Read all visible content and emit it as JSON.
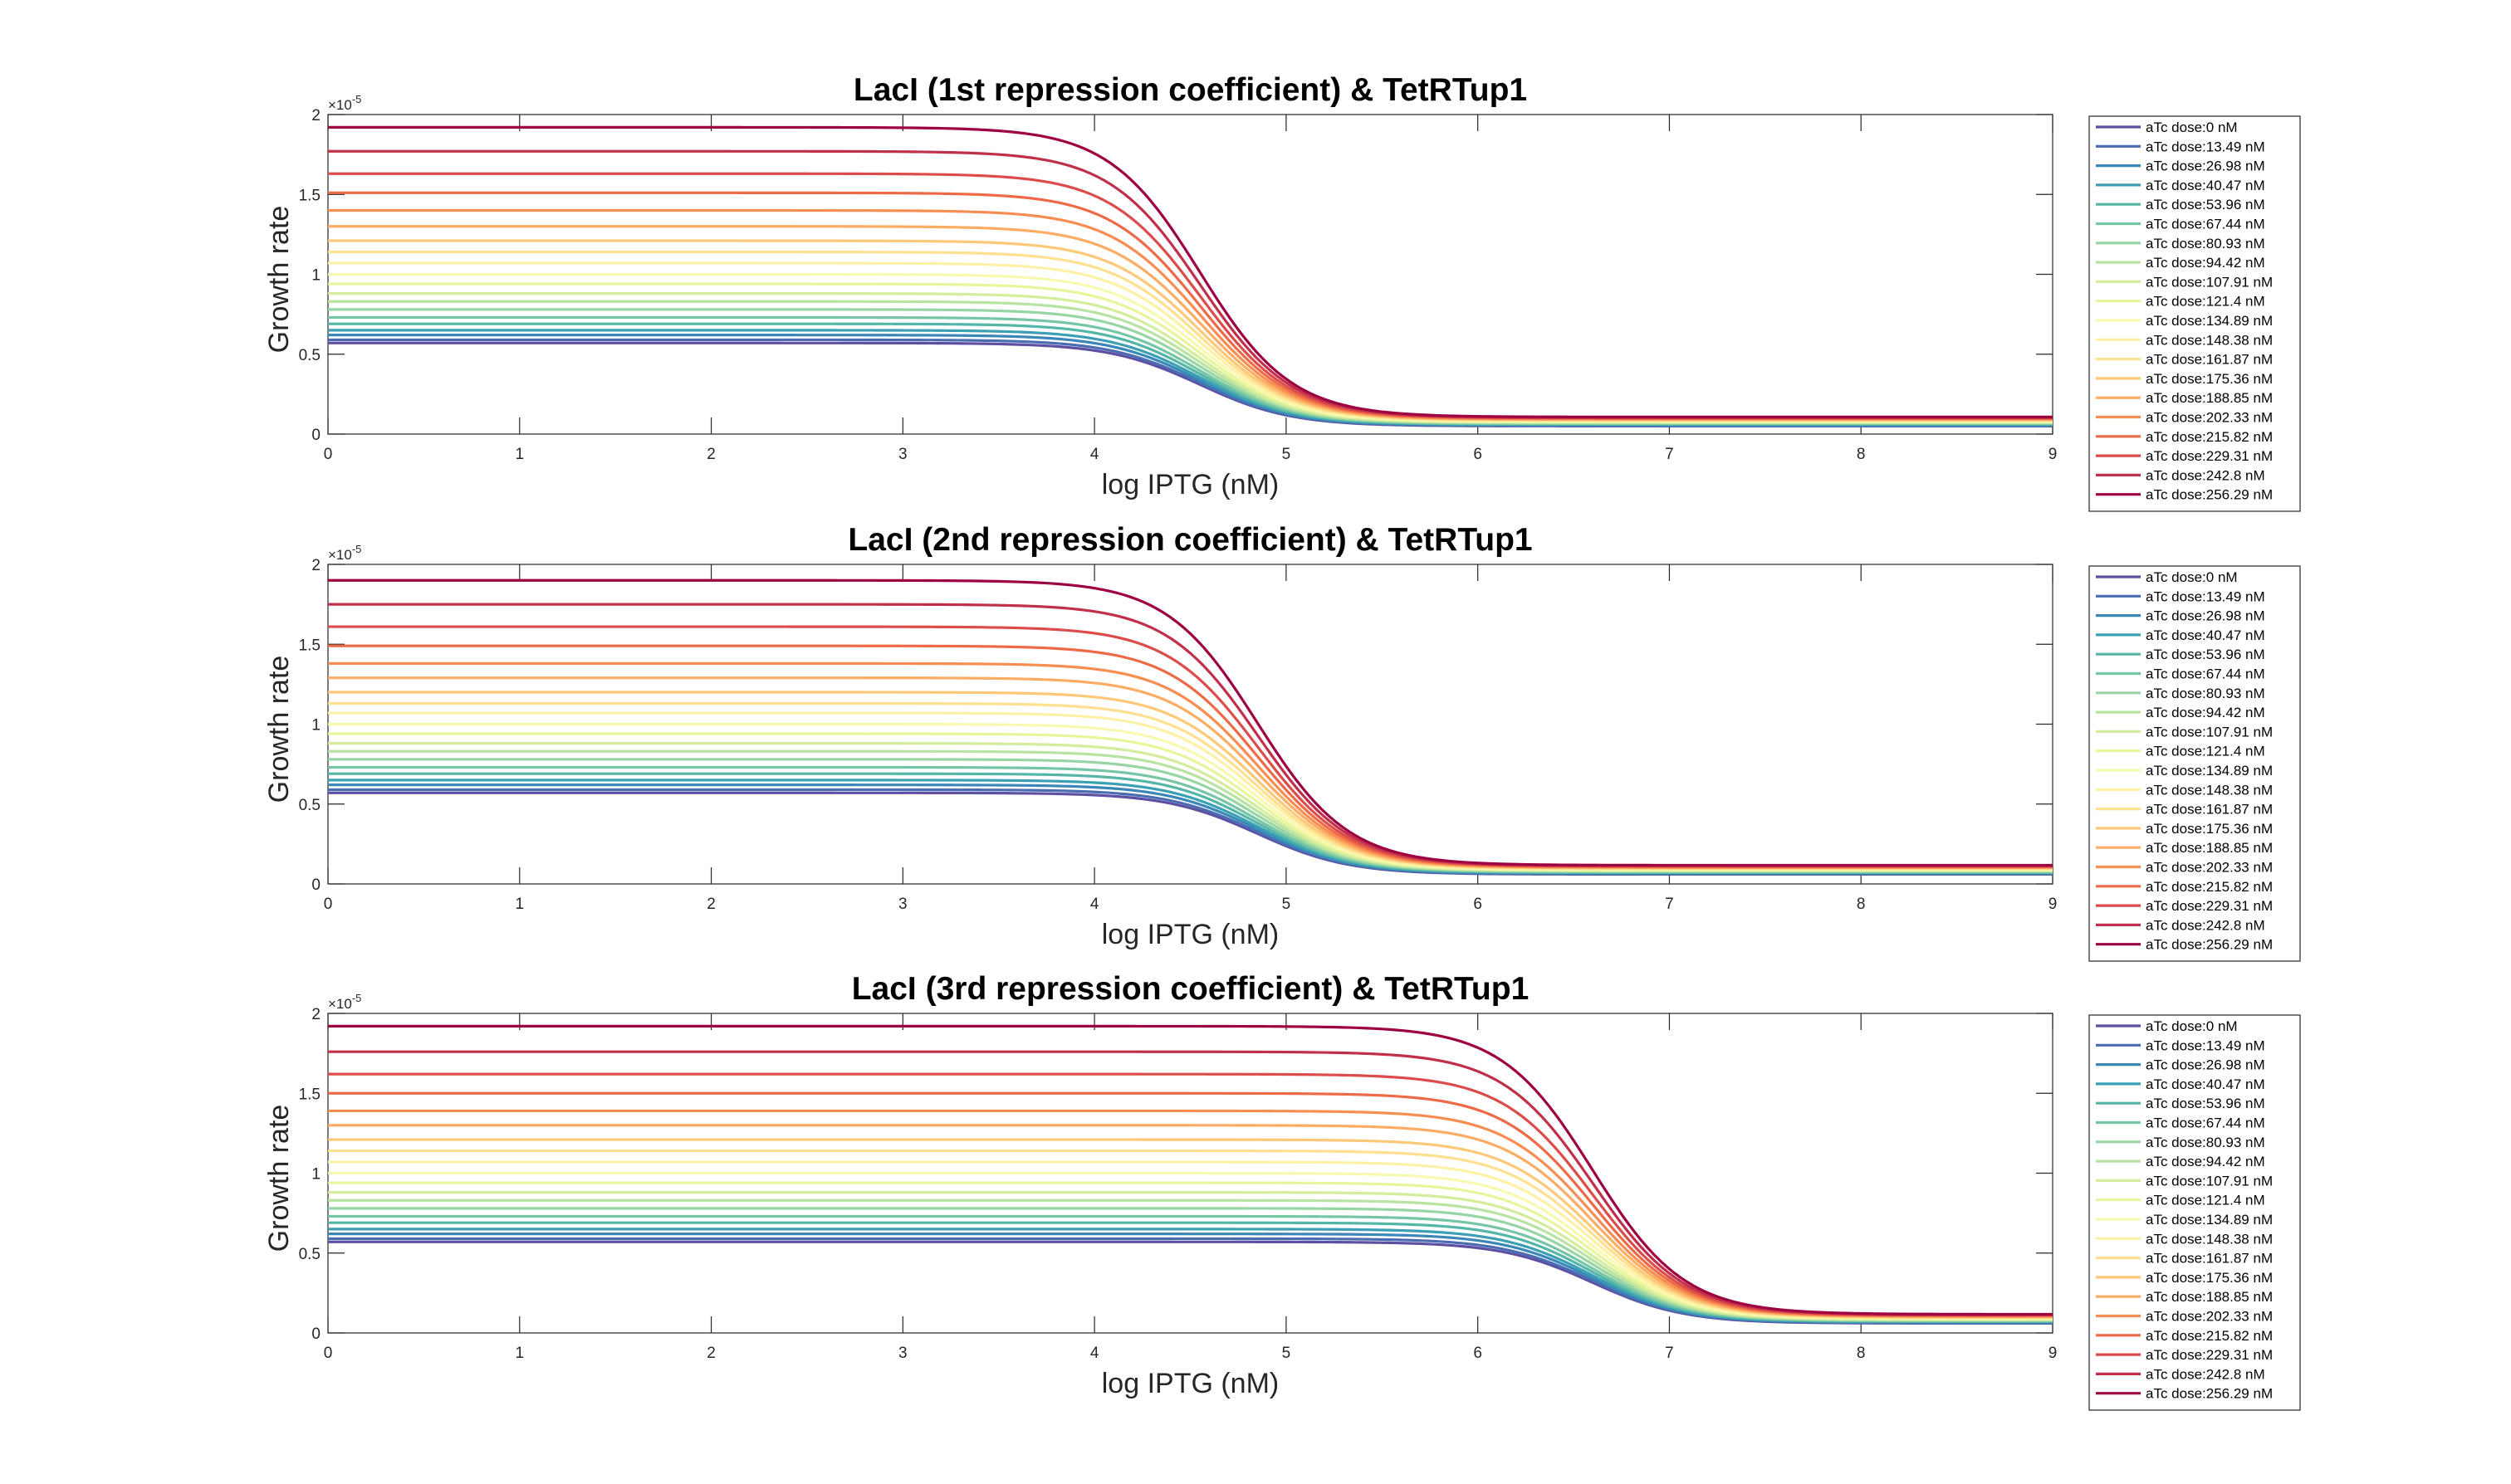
{
  "chart_data": [
    {
      "type": "line",
      "title": "LacI (1st repression coefficient) & TetRTup1",
      "xlabel": "log IPTG (nM)",
      "ylabel": "Growth rate",
      "xlim": [
        0,
        9
      ],
      "ylim": [
        0,
        2e-05
      ],
      "xticks": [
        "0",
        "1",
        "2",
        "3",
        "4",
        "5",
        "6",
        "7",
        "8",
        "9"
      ],
      "yticks": [
        "0",
        "0.5",
        "1",
        "1.5",
        "2"
      ],
      "y_exponent": "×10",
      "y_exponent_power": "-5",
      "grid": false,
      "legend_position": "outside-right",
      "midpoint_x": 4.55,
      "steepness": 4.2,
      "series": [
        {
          "name": "aTc dose:0 nM",
          "color": "#5e4fa2",
          "high": 5.7e-06,
          "low": 5e-07
        },
        {
          "name": "aTc dose:13.49 nM",
          "color": "#4a6db1",
          "high": 5.9e-06,
          "low": 5.3e-07
        },
        {
          "name": "aTc dose:26.98 nM",
          "color": "#3a87b8",
          "high": 6.2e-06,
          "low": 5.6e-07
        },
        {
          "name": "aTc dose:40.47 nM",
          "color": "#3ba0b4",
          "high": 6.5e-06,
          "low": 5.9e-07
        },
        {
          "name": "aTc dose:53.96 nM",
          "color": "#55b6a8",
          "high": 6.9e-06,
          "low": 6.2e-07
        },
        {
          "name": "aTc dose:67.44 nM",
          "color": "#76c6a5",
          "high": 7.3e-06,
          "low": 6.5e-07
        },
        {
          "name": "aTc dose:80.93 nM",
          "color": "#98d5a4",
          "high": 7.8e-06,
          "low": 6.8e-07
        },
        {
          "name": "aTc dose:94.42 nM",
          "color": "#b8e3a2",
          "high": 8.3e-06,
          "low": 7.1e-07
        },
        {
          "name": "aTc dose:107.91 nM",
          "color": "#d3ed9c",
          "high": 8.8e-06,
          "low": 7.4e-07
        },
        {
          "name": "aTc dose:121.4 nM",
          "color": "#e8f59b",
          "high": 9.4e-06,
          "low": 7.7e-07
        },
        {
          "name": "aTc dose:134.89 nM",
          "color": "#f8f9b0",
          "high": 1e-05,
          "low": 8e-07
        },
        {
          "name": "aTc dose:148.38 nM",
          "color": "#fdf1a6",
          "high": 1.07e-05,
          "low": 8.3e-07
        },
        {
          "name": "aTc dose:161.87 nM",
          "color": "#fee090",
          "high": 1.14e-05,
          "low": 8.6e-07
        },
        {
          "name": "aTc dose:175.36 nM",
          "color": "#fdc878",
          "high": 1.21e-05,
          "low": 8.9e-07
        },
        {
          "name": "aTc dose:188.85 nM",
          "color": "#fcac63",
          "high": 1.3e-05,
          "low": 9.2e-07
        },
        {
          "name": "aTc dose:202.33 nM",
          "color": "#f88d52",
          "high": 1.4e-05,
          "low": 9.5e-07
        },
        {
          "name": "aTc dose:215.82 nM",
          "color": "#ee6a46",
          "high": 1.51e-05,
          "low": 9.8e-07
        },
        {
          "name": "aTc dose:229.31 nM",
          "color": "#dc4c4b",
          "high": 1.63e-05,
          "low": 1.01e-06
        },
        {
          "name": "aTc dose:242.8 nM",
          "color": "#c1304a",
          "high": 1.77e-05,
          "low": 1.04e-06
        },
        {
          "name": "aTc dose:256.29 nM",
          "color": "#9e0142",
          "high": 1.92e-05,
          "low": 1.07e-06
        }
      ]
    },
    {
      "type": "line",
      "title": "LacI (2nd repression coefficient) & TetRTup1",
      "xlabel": "log IPTG (nM)",
      "ylabel": "Growth rate",
      "xlim": [
        0,
        9
      ],
      "ylim": [
        0,
        2e-05
      ],
      "xticks": [
        "0",
        "1",
        "2",
        "3",
        "4",
        "5",
        "6",
        "7",
        "8",
        "9"
      ],
      "yticks": [
        "0",
        "0.5",
        "1",
        "1.5",
        "2"
      ],
      "y_exponent": "×10",
      "y_exponent_power": "-5",
      "grid": false,
      "legend_position": "outside-right",
      "midpoint_x": 4.85,
      "steepness": 4.2,
      "series": [
        {
          "name": "aTc dose:0 nM",
          "color": "#5e4fa2",
          "high": 5.7e-06,
          "low": 6e-07
        },
        {
          "name": "aTc dose:13.49 nM",
          "color": "#4a6db1",
          "high": 5.9e-06,
          "low": 6.3e-07
        },
        {
          "name": "aTc dose:26.98 nM",
          "color": "#3a87b8",
          "high": 6.2e-06,
          "low": 6.6e-07
        },
        {
          "name": "aTc dose:40.47 nM",
          "color": "#3ba0b4",
          "high": 6.5e-06,
          "low": 6.9e-07
        },
        {
          "name": "aTc dose:53.96 nM",
          "color": "#55b6a8",
          "high": 6.9e-06,
          "low": 7.2e-07
        },
        {
          "name": "aTc dose:67.44 nM",
          "color": "#76c6a5",
          "high": 7.3e-06,
          "low": 7.5e-07
        },
        {
          "name": "aTc dose:80.93 nM",
          "color": "#98d5a4",
          "high": 7.8e-06,
          "low": 7.8e-07
        },
        {
          "name": "aTc dose:94.42 nM",
          "color": "#b8e3a2",
          "high": 8.3e-06,
          "low": 8.1e-07
        },
        {
          "name": "aTc dose:107.91 nM",
          "color": "#d3ed9c",
          "high": 8.8e-06,
          "low": 8.4e-07
        },
        {
          "name": "aTc dose:121.4 nM",
          "color": "#e8f59b",
          "high": 9.4e-06,
          "low": 8.7e-07
        },
        {
          "name": "aTc dose:134.89 nM",
          "color": "#f8f9b0",
          "high": 1e-05,
          "low": 9e-07
        },
        {
          "name": "aTc dose:148.38 nM",
          "color": "#fdf1a6",
          "high": 1.07e-05,
          "low": 9.3e-07
        },
        {
          "name": "aTc dose:161.87 nM",
          "color": "#fee090",
          "high": 1.13e-05,
          "low": 9.6e-07
        },
        {
          "name": "aTc dose:175.36 nM",
          "color": "#fdc878",
          "high": 1.2e-05,
          "low": 9.9e-07
        },
        {
          "name": "aTc dose:188.85 nM",
          "color": "#fcac63",
          "high": 1.29e-05,
          "low": 1.02e-06
        },
        {
          "name": "aTc dose:202.33 nM",
          "color": "#f88d52",
          "high": 1.38e-05,
          "low": 1.05e-06
        },
        {
          "name": "aTc dose:215.82 nM",
          "color": "#ee6a46",
          "high": 1.49e-05,
          "low": 1.08e-06
        },
        {
          "name": "aTc dose:229.31 nM",
          "color": "#dc4c4b",
          "high": 1.61e-05,
          "low": 1.11e-06
        },
        {
          "name": "aTc dose:242.8 nM",
          "color": "#c1304a",
          "high": 1.75e-05,
          "low": 1.14e-06
        },
        {
          "name": "aTc dose:256.29 nM",
          "color": "#9e0142",
          "high": 1.9e-05,
          "low": 1.17e-06
        }
      ]
    },
    {
      "type": "line",
      "title": "LacI (3rd repression coefficient) & TetRTup1",
      "xlabel": "log IPTG (nM)",
      "ylabel": "Growth rate",
      "xlim": [
        0,
        9
      ],
      "ylim": [
        0,
        2e-05
      ],
      "xticks": [
        "0",
        "1",
        "2",
        "3",
        "4",
        "5",
        "6",
        "7",
        "8",
        "9"
      ],
      "yticks": [
        "0",
        "0.5",
        "1",
        "1.5",
        "2"
      ],
      "y_exponent": "×10",
      "y_exponent_power": "-5",
      "grid": false,
      "legend_position": "outside-right",
      "midpoint_x": 6.6,
      "steepness": 4.2,
      "series": [
        {
          "name": "aTc dose:0 nM",
          "color": "#5e4fa2",
          "high": 5.7e-06,
          "low": 6e-07
        },
        {
          "name": "aTc dose:13.49 nM",
          "color": "#4a6db1",
          "high": 5.9e-06,
          "low": 6.3e-07
        },
        {
          "name": "aTc dose:26.98 nM",
          "color": "#3a87b8",
          "high": 6.2e-06,
          "low": 6.6e-07
        },
        {
          "name": "aTc dose:40.47 nM",
          "color": "#3ba0b4",
          "high": 6.5e-06,
          "low": 6.9e-07
        },
        {
          "name": "aTc dose:53.96 nM",
          "color": "#55b6a8",
          "high": 6.9e-06,
          "low": 7.2e-07
        },
        {
          "name": "aTc dose:67.44 nM",
          "color": "#76c6a5",
          "high": 7.3e-06,
          "low": 7.5e-07
        },
        {
          "name": "aTc dose:80.93 nM",
          "color": "#98d5a4",
          "high": 7.8e-06,
          "low": 7.8e-07
        },
        {
          "name": "aTc dose:94.42 nM",
          "color": "#b8e3a2",
          "high": 8.3e-06,
          "low": 8.1e-07
        },
        {
          "name": "aTc dose:107.91 nM",
          "color": "#d3ed9c",
          "high": 8.8e-06,
          "low": 8.4e-07
        },
        {
          "name": "aTc dose:121.4 nM",
          "color": "#e8f59b",
          "high": 9.4e-06,
          "low": 8.7e-07
        },
        {
          "name": "aTc dose:134.89 nM",
          "color": "#f8f9b0",
          "high": 1e-05,
          "low": 9e-07
        },
        {
          "name": "aTc dose:148.38 nM",
          "color": "#fdf1a6",
          "high": 1.07e-05,
          "low": 9.3e-07
        },
        {
          "name": "aTc dose:161.87 nM",
          "color": "#fee090",
          "high": 1.14e-05,
          "low": 9.6e-07
        },
        {
          "name": "aTc dose:175.36 nM",
          "color": "#fdc878",
          "high": 1.21e-05,
          "low": 9.9e-07
        },
        {
          "name": "aTc dose:188.85 nM",
          "color": "#fcac63",
          "high": 1.3e-05,
          "low": 1.02e-06
        },
        {
          "name": "aTc dose:202.33 nM",
          "color": "#f88d52",
          "high": 1.39e-05,
          "low": 1.05e-06
        },
        {
          "name": "aTc dose:215.82 nM",
          "color": "#ee6a46",
          "high": 1.5e-05,
          "low": 1.08e-06
        },
        {
          "name": "aTc dose:229.31 nM",
          "color": "#dc4c4b",
          "high": 1.62e-05,
          "low": 1.11e-06
        },
        {
          "name": "aTc dose:242.8 nM",
          "color": "#c1304a",
          "high": 1.76e-05,
          "low": 1.14e-06
        },
        {
          "name": "aTc dose:256.29 nM",
          "color": "#9e0142",
          "high": 1.92e-05,
          "low": 1.17e-06
        }
      ]
    }
  ]
}
